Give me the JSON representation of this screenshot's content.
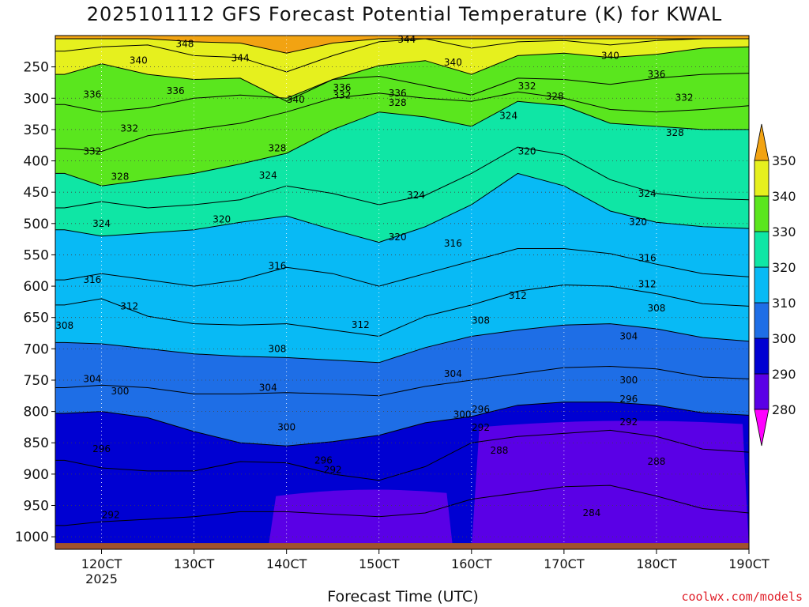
{
  "title": "2025101112 GFS Forecast Potential Temperature (K) for KWAL",
  "credit": "coolwx.com/models",
  "chart_data": {
    "type": "heatmap",
    "title": "2025101112 GFS Forecast Potential Temperature (K) for KWAL",
    "xlabel": "Forecast Time (UTC)",
    "ylabel": "",
    "x_ticks": [
      "120CT",
      "130CT",
      "140CT",
      "150CT",
      "160CT",
      "170CT",
      "180CT",
      "190CT"
    ],
    "x_tick_sub": "2025",
    "x_range": [
      11.5,
      19.0
    ],
    "y_ticks": [
      250,
      300,
      350,
      400,
      450,
      500,
      550,
      600,
      650,
      700,
      750,
      800,
      850,
      900,
      950,
      1000
    ],
    "y_range": [
      200,
      1020
    ],
    "colorbar": {
      "levels": [
        280,
        290,
        300,
        310,
        320,
        330,
        340,
        350
      ],
      "labels": [
        "280",
        "290",
        "300",
        "310",
        "320",
        "330",
        "340",
        "350"
      ],
      "colors": [
        "#9600c8",
        "#5a00e6",
        "#0000d2",
        "#1e6ee6",
        "#08baf5",
        "#0fe6a5",
        "#5ae61e",
        "#e6f01e",
        "#f2a312"
      ],
      "extend": "both",
      "under_color": "#ff00ff",
      "over_color": "#f2a312"
    },
    "times": [
      11.6,
      12.0,
      12.5,
      13.0,
      13.5,
      14.0,
      14.5,
      15.0,
      15.5,
      16.0,
      16.5,
      17.0,
      17.5,
      18.0,
      18.5,
      19.0
    ],
    "isentropes": [
      {
        "theta": 292,
        "pressures": [
          982,
          976,
          972,
          968,
          960,
          960,
          964,
          968,
          962,
          940,
          930,
          920,
          918,
          935,
          955,
          962
        ],
        "label": "292"
      },
      {
        "theta": 296,
        "pressures": [
          878,
          890,
          895,
          895,
          880,
          882,
          900,
          910,
          888,
          850,
          840,
          835,
          830,
          840,
          860,
          865
        ],
        "label": "296"
      },
      {
        "theta": 300,
        "pressures": [
          803,
          800,
          810,
          832,
          850,
          855,
          848,
          838,
          818,
          808,
          790,
          785,
          785,
          790,
          802,
          806
        ],
        "label": "300"
      },
      {
        "theta": 304,
        "pressures": [
          762,
          758,
          762,
          772,
          772,
          770,
          772,
          775,
          760,
          750,
          740,
          730,
          728,
          732,
          745,
          748
        ],
        "label": "304"
      },
      {
        "theta": 308,
        "pressures": [
          690,
          692,
          700,
          708,
          712,
          714,
          718,
          722,
          698,
          680,
          670,
          662,
          660,
          668,
          682,
          688
        ],
        "label": "308"
      },
      {
        "theta": 312,
        "pressures": [
          630,
          620,
          648,
          660,
          662,
          660,
          670,
          680,
          648,
          630,
          608,
          598,
          600,
          612,
          628,
          632
        ],
        "label": "312"
      },
      {
        "theta": 316,
        "pressures": [
          590,
          580,
          590,
          600,
          590,
          570,
          580,
          600,
          580,
          560,
          540,
          540,
          548,
          565,
          580,
          585
        ],
        "label": "316"
      },
      {
        "theta": 320,
        "pressures": [
          510,
          520,
          515,
          510,
          498,
          488,
          510,
          530,
          505,
          470,
          420,
          440,
          480,
          498,
          505,
          508
        ],
        "label": "320"
      },
      {
        "theta": 324,
        "pressures": [
          475,
          465,
          475,
          470,
          462,
          440,
          452,
          470,
          455,
          420,
          378,
          390,
          430,
          452,
          460,
          462
        ],
        "label": "324"
      },
      {
        "theta": 328,
        "pressures": [
          420,
          440,
          430,
          420,
          405,
          388,
          350,
          322,
          330,
          345,
          305,
          312,
          340,
          345,
          350,
          350
        ],
        "label": "328"
      },
      {
        "theta": 332,
        "pressures": [
          380,
          385,
          360,
          350,
          340,
          322,
          300,
          292,
          300,
          305,
          290,
          300,
          318,
          322,
          318,
          312
        ],
        "label": "332"
      },
      {
        "theta": 336,
        "pressures": [
          310,
          322,
          315,
          300,
          295,
          300,
          270,
          265,
          280,
          295,
          268,
          270,
          278,
          268,
          262,
          260
        ],
        "label": "336"
      },
      {
        "theta": 340,
        "pressures": [
          262,
          245,
          262,
          270,
          268,
          305,
          270,
          248,
          240,
          262,
          232,
          228,
          235,
          230,
          220,
          218
        ],
        "label": "340"
      },
      {
        "theta": 344,
        "pressures": [
          225,
          218,
          215,
          232,
          235,
          258,
          232,
          210,
          205,
          220,
          210,
          208,
          215,
          208,
          205,
          205
        ],
        "label": "344"
      },
      {
        "theta": 348,
        "pressures": [
          205,
          205,
          205,
          210,
          212,
          228,
          212,
          205,
          205,
          205,
          205,
          205,
          205,
          205,
          205,
          205
        ],
        "label": "348"
      }
    ],
    "contour_labels": [
      {
        "theta": 348,
        "t": 12.9,
        "p": 213
      },
      {
        "theta": 344,
        "t": 15.3,
        "p": 206
      },
      {
        "theta": 344,
        "t": 13.5,
        "p": 236
      },
      {
        "theta": 340,
        "t": 12.4,
        "p": 240
      },
      {
        "theta": 340,
        "t": 15.8,
        "p": 243
      },
      {
        "theta": 340,
        "t": 17.5,
        "p": 232
      },
      {
        "theta": 336,
        "t": 18.0,
        "p": 262
      },
      {
        "theta": 336,
        "t": 14.6,
        "p": 283
      },
      {
        "theta": 336,
        "t": 15.2,
        "p": 292
      },
      {
        "theta": 336,
        "t": 11.9,
        "p": 294
      },
      {
        "theta": 336,
        "t": 12.8,
        "p": 288
      },
      {
        "theta": 340,
        "t": 14.1,
        "p": 302
      },
      {
        "theta": 332,
        "t": 14.6,
        "p": 295
      },
      {
        "theta": 332,
        "t": 16.6,
        "p": 281
      },
      {
        "theta": 332,
        "t": 18.3,
        "p": 299
      },
      {
        "theta": 328,
        "t": 15.2,
        "p": 307
      },
      {
        "theta": 328,
        "t": 16.9,
        "p": 297
      },
      {
        "theta": 328,
        "t": 18.2,
        "p": 355
      },
      {
        "theta": 328,
        "t": 13.9,
        "p": 380
      },
      {
        "theta": 328,
        "t": 12.2,
        "p": 425
      },
      {
        "theta": 332,
        "t": 12.3,
        "p": 348
      },
      {
        "theta": 332,
        "t": 11.9,
        "p": 385
      },
      {
        "theta": 324,
        "t": 16.4,
        "p": 328
      },
      {
        "theta": 324,
        "t": 13.8,
        "p": 423
      },
      {
        "theta": 324,
        "t": 15.4,
        "p": 455
      },
      {
        "theta": 324,
        "t": 17.9,
        "p": 452
      },
      {
        "theta": 324,
        "t": 12.0,
        "p": 500
      },
      {
        "theta": 320,
        "t": 16.6,
        "p": 385
      },
      {
        "theta": 320,
        "t": 13.3,
        "p": 493
      },
      {
        "theta": 320,
        "t": 15.2,
        "p": 522
      },
      {
        "theta": 320,
        "t": 17.8,
        "p": 498
      },
      {
        "theta": 316,
        "t": 15.8,
        "p": 532
      },
      {
        "theta": 316,
        "t": 13.9,
        "p": 568
      },
      {
        "theta": 316,
        "t": 11.9,
        "p": 590
      },
      {
        "theta": 316,
        "t": 17.9,
        "p": 555
      },
      {
        "theta": 312,
        "t": 12.3,
        "p": 632
      },
      {
        "theta": 312,
        "t": 14.8,
        "p": 662
      },
      {
        "theta": 312,
        "t": 16.5,
        "p": 615
      },
      {
        "theta": 312,
        "t": 17.9,
        "p": 597
      },
      {
        "theta": 308,
        "t": 11.6,
        "p": 663
      },
      {
        "theta": 308,
        "t": 13.9,
        "p": 700
      },
      {
        "theta": 308,
        "t": 16.1,
        "p": 655
      },
      {
        "theta": 308,
        "t": 18.0,
        "p": 635
      },
      {
        "theta": 304,
        "t": 11.9,
        "p": 748
      },
      {
        "theta": 304,
        "t": 13.8,
        "p": 762
      },
      {
        "theta": 304,
        "t": 15.8,
        "p": 740
      },
      {
        "theta": 304,
        "t": 17.7,
        "p": 680
      },
      {
        "theta": 300,
        "t": 12.2,
        "p": 768
      },
      {
        "theta": 300,
        "t": 14.0,
        "p": 825
      },
      {
        "theta": 300,
        "t": 15.9,
        "p": 805
      },
      {
        "theta": 300,
        "t": 17.7,
        "p": 750
      },
      {
        "theta": 296,
        "t": 12.0,
        "p": 860
      },
      {
        "theta": 296,
        "t": 14.4,
        "p": 878
      },
      {
        "theta": 296,
        "t": 16.1,
        "p": 797
      },
      {
        "theta": 296,
        "t": 17.7,
        "p": 780
      },
      {
        "theta": 292,
        "t": 12.1,
        "p": 965
      },
      {
        "theta": 292,
        "t": 14.5,
        "p": 893
      },
      {
        "theta": 292,
        "t": 16.1,
        "p": 826
      },
      {
        "theta": 292,
        "t": 17.7,
        "p": 817
      },
      {
        "theta": 288,
        "t": 16.3,
        "p": 862
      },
      {
        "theta": 288,
        "t": 18.0,
        "p": 880
      },
      {
        "theta": 284,
        "t": 17.3,
        "p": 962
      }
    ],
    "cold_pools": [
      {
        "theta_min": 284,
        "t_start": 13.8,
        "t_end": 15.8,
        "p_top": 925
      },
      {
        "theta_min": 280,
        "t_start": 16.0,
        "t_end": 19.0,
        "p_top": 815
      }
    ],
    "terrain": {
      "surface_pressure": 1010,
      "color": "#a0522d"
    }
  }
}
